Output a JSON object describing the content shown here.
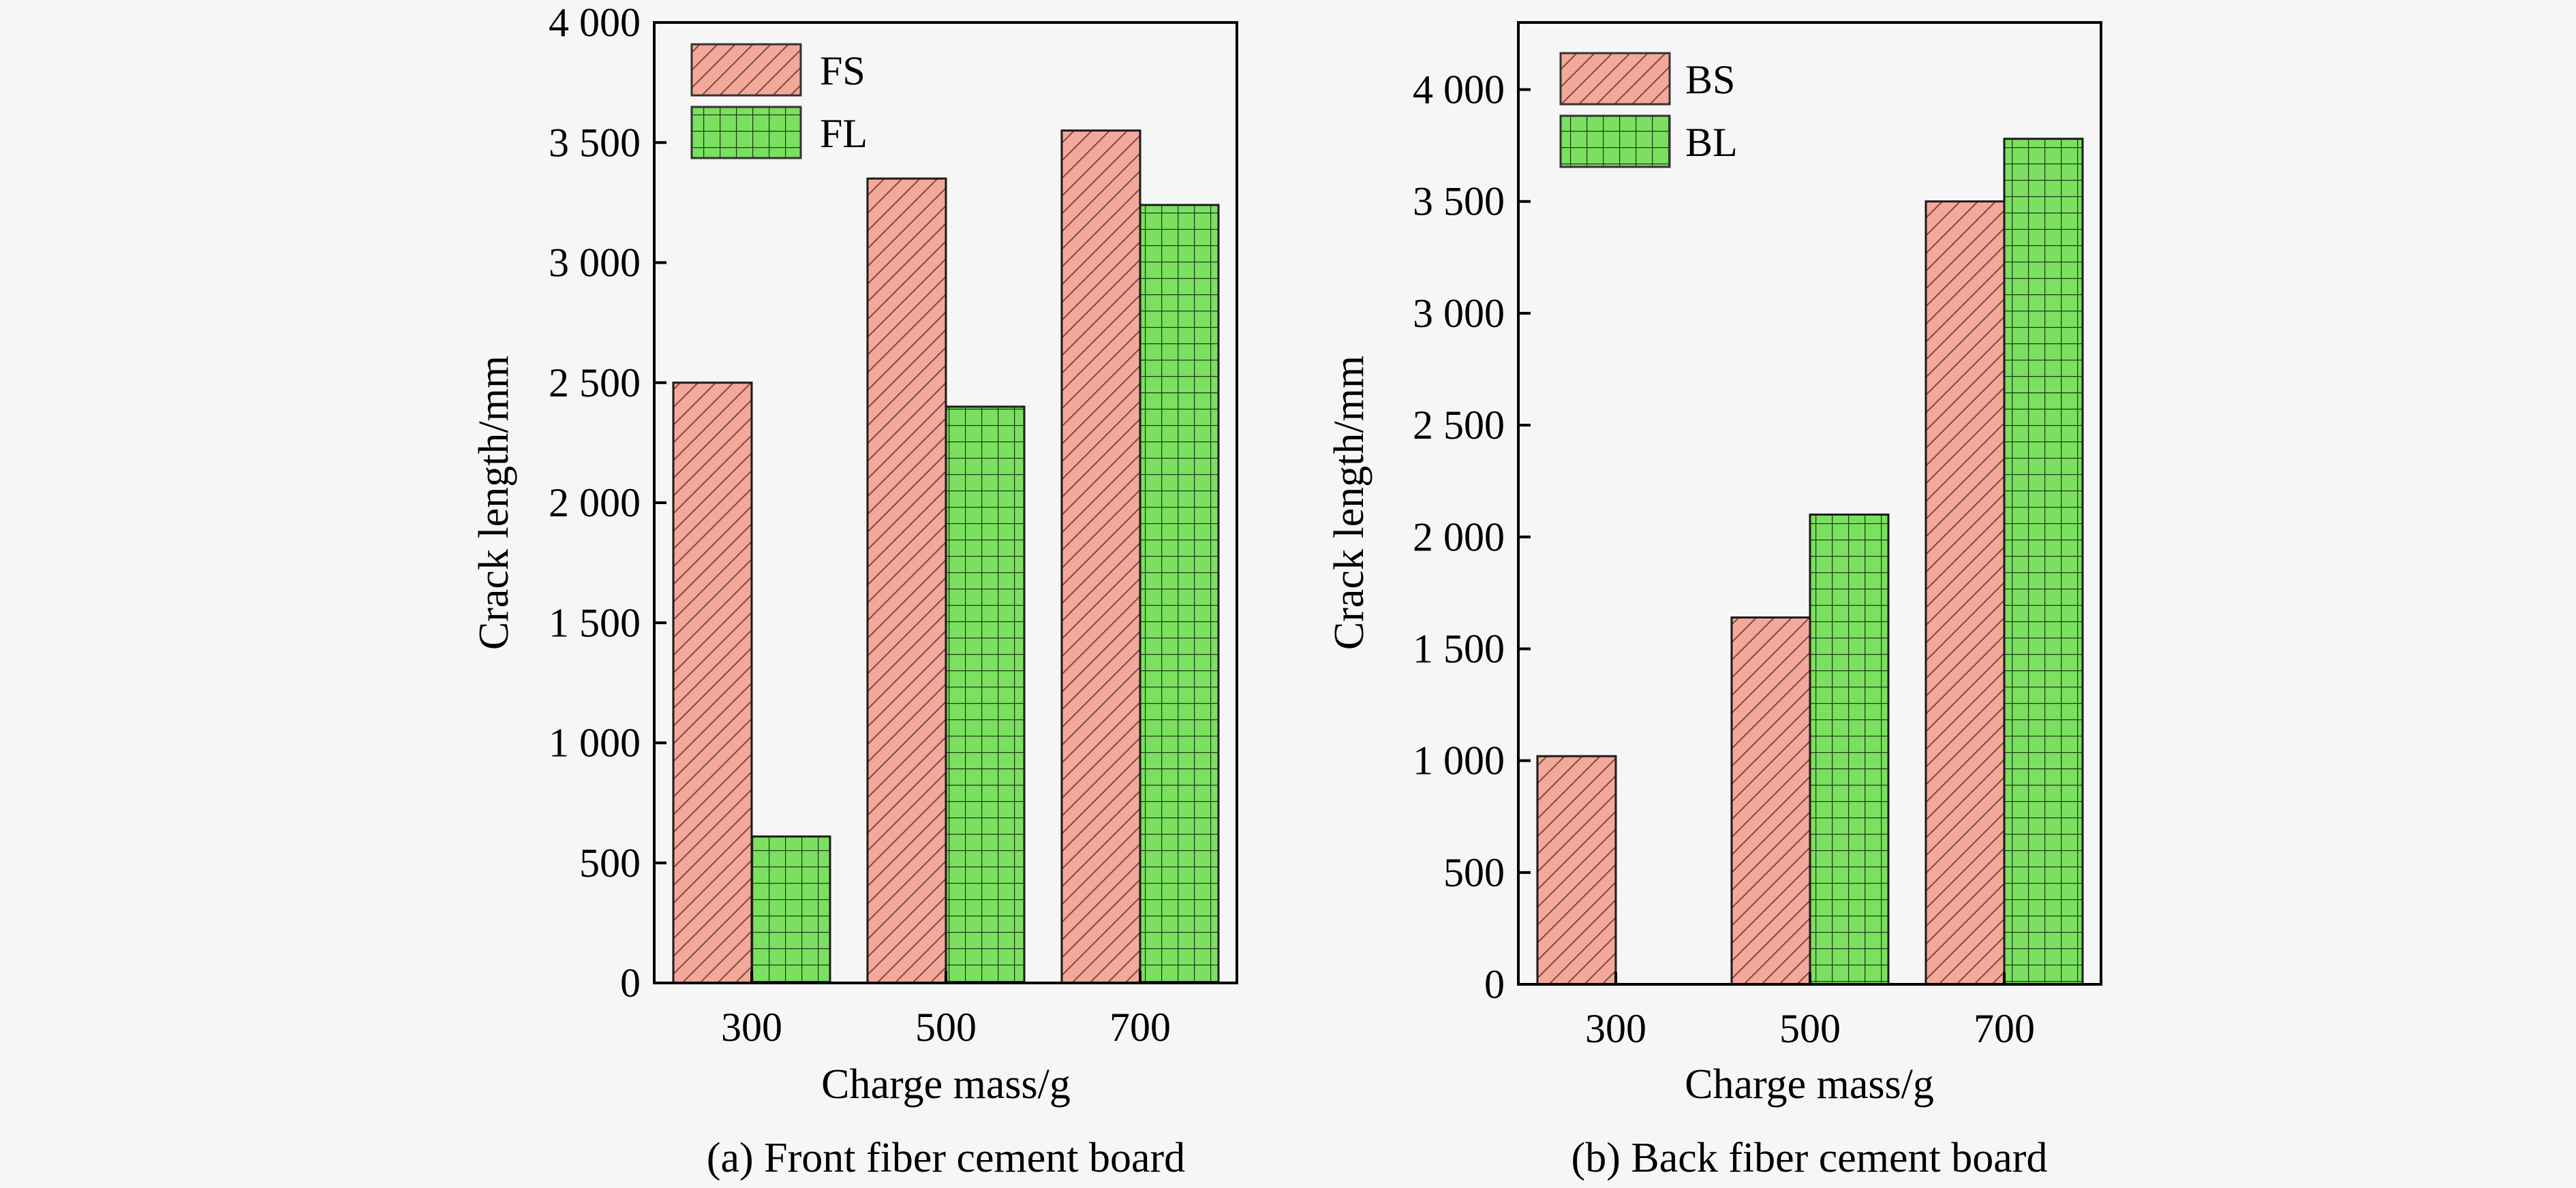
{
  "chart_data": [
    {
      "type": "bar",
      "caption": "(a) Front fiber cement board",
      "xlabel": "Charge mass/g",
      "ylabel": "Crack length/mm",
      "categories": [
        "300",
        "500",
        "700"
      ],
      "yticks": [
        "0",
        "500",
        "1 000",
        "1 500",
        "2 000",
        "2 500",
        "3 000",
        "3 500",
        "4 000"
      ],
      "ylim": [
        0,
        4000
      ],
      "legend_position": "top-left",
      "series": [
        {
          "name": "FS",
          "pattern": "diagonal-hatch",
          "color": "#f4a89a",
          "values": [
            2500,
            3350,
            3550
          ]
        },
        {
          "name": "FL",
          "pattern": "grid-hatch",
          "color": "#7be060",
          "values": [
            610,
            2400,
            3240
          ]
        }
      ]
    },
    {
      "type": "bar",
      "caption": "(b) Back fiber cement board",
      "xlabel": "Charge mass/g",
      "ylabel": "Crack length/mm",
      "categories": [
        "300",
        "500",
        "700"
      ],
      "yticks": [
        "0",
        "500",
        "1 000",
        "1 500",
        "2 000",
        "2 500",
        "3 000",
        "3 500",
        "4 000"
      ],
      "ylim": [
        0,
        4300
      ],
      "legend_position": "top-left",
      "series": [
        {
          "name": "BS",
          "pattern": "diagonal-hatch",
          "color": "#f4a89a",
          "values": [
            1020,
            1640,
            3500
          ]
        },
        {
          "name": "BL",
          "pattern": "grid-hatch",
          "color": "#7be060",
          "values": [
            0,
            2100,
            3780
          ]
        }
      ]
    }
  ]
}
